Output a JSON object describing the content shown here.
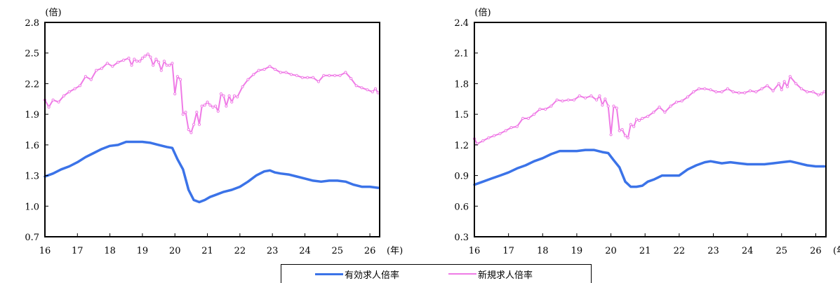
{
  "chart_data": [
    {
      "type": "line",
      "title": "",
      "unit_label": "(倍)",
      "xlabel": "(年)",
      "x_ticks": [
        "16",
        "17",
        "18",
        "19",
        "20",
        "21",
        "22",
        "23",
        "24",
        "25",
        "26"
      ],
      "xlim": [
        2016.0,
        2026.3
      ],
      "ylim": [
        0.7,
        2.8
      ],
      "y_ticks": [
        "0.7",
        "1.0",
        "1.3",
        "1.6",
        "1.9",
        "2.2",
        "2.5",
        "2.8"
      ],
      "grid": false,
      "series": [
        {
          "name": "有効求人倍率",
          "color": "#3b73e8",
          "x": [
            2016.0,
            2016.25,
            2016.5,
            2016.75,
            2017.0,
            2017.25,
            2017.5,
            2017.75,
            2018.0,
            2018.25,
            2018.5,
            2018.75,
            2019.0,
            2019.25,
            2019.5,
            2019.75,
            2019.92,
            2020.08,
            2020.25,
            2020.42,
            2020.58,
            2020.75,
            2020.92,
            2021.08,
            2021.25,
            2021.5,
            2021.75,
            2022.0,
            2022.25,
            2022.5,
            2022.75,
            2022.92,
            2023.08,
            2023.25,
            2023.5,
            2023.75,
            2024.0,
            2024.25,
            2024.5,
            2024.75,
            2025.0,
            2025.25,
            2025.5,
            2025.75,
            2026.0,
            2026.25
          ],
          "values": [
            1.29,
            1.32,
            1.36,
            1.39,
            1.43,
            1.48,
            1.52,
            1.56,
            1.59,
            1.6,
            1.63,
            1.63,
            1.63,
            1.62,
            1.6,
            1.58,
            1.57,
            1.46,
            1.36,
            1.16,
            1.06,
            1.04,
            1.06,
            1.09,
            1.11,
            1.14,
            1.16,
            1.19,
            1.24,
            1.3,
            1.34,
            1.35,
            1.33,
            1.32,
            1.31,
            1.29,
            1.27,
            1.25,
            1.24,
            1.25,
            1.25,
            1.24,
            1.21,
            1.19,
            1.19,
            1.18
          ]
        },
        {
          "name": "新規求人倍率",
          "color": "#ef7be6",
          "x": [
            2016.0,
            2016.12,
            2016.25,
            2016.42,
            2016.58,
            2016.75,
            2016.92,
            2017.08,
            2017.25,
            2017.42,
            2017.58,
            2017.75,
            2017.92,
            2018.08,
            2018.25,
            2018.42,
            2018.58,
            2018.67,
            2018.75,
            2018.83,
            2018.92,
            2019.0,
            2019.08,
            2019.17,
            2019.25,
            2019.33,
            2019.42,
            2019.5,
            2019.58,
            2019.67,
            2019.75,
            2019.83,
            2019.92,
            2020.0,
            2020.08,
            2020.17,
            2020.25,
            2020.33,
            2020.42,
            2020.5,
            2020.58,
            2020.67,
            2020.75,
            2020.83,
            2020.92,
            2021.0,
            2021.08,
            2021.17,
            2021.25,
            2021.33,
            2021.42,
            2021.5,
            2021.58,
            2021.67,
            2021.75,
            2021.83,
            2021.92,
            2022.08,
            2022.25,
            2022.42,
            2022.58,
            2022.75,
            2022.92,
            2023.08,
            2023.25,
            2023.42,
            2023.58,
            2023.75,
            2023.92,
            2024.08,
            2024.25,
            2024.42,
            2024.58,
            2024.75,
            2024.92,
            2025.08,
            2025.25,
            2025.42,
            2025.58,
            2025.75,
            2025.92,
            2026.08,
            2026.17,
            2026.25
          ],
          "values": [
            2.04,
            1.97,
            2.04,
            2.02,
            2.08,
            2.12,
            2.15,
            2.18,
            2.27,
            2.24,
            2.33,
            2.35,
            2.4,
            2.37,
            2.41,
            2.43,
            2.45,
            2.38,
            2.44,
            2.42,
            2.42,
            2.45,
            2.47,
            2.49,
            2.46,
            2.38,
            2.44,
            2.41,
            2.33,
            2.42,
            2.38,
            2.38,
            2.4,
            2.1,
            2.27,
            2.24,
            1.9,
            1.92,
            1.75,
            1.72,
            1.8,
            1.92,
            1.8,
            1.98,
            1.99,
            2.02,
            1.99,
            1.97,
            1.98,
            1.93,
            2.1,
            2.08,
            1.98,
            2.08,
            2.02,
            2.08,
            2.07,
            2.17,
            2.24,
            2.29,
            2.33,
            2.34,
            2.37,
            2.34,
            2.31,
            2.31,
            2.29,
            2.28,
            2.26,
            2.26,
            2.26,
            2.22,
            2.28,
            2.28,
            2.28,
            2.28,
            2.31,
            2.25,
            2.18,
            2.16,
            2.14,
            2.12,
            2.15,
            2.11
          ]
        }
      ]
    },
    {
      "type": "line",
      "title": "",
      "unit_label": "(倍)",
      "xlabel": "(年)",
      "x_ticks": [
        "16",
        "17",
        "18",
        "19",
        "20",
        "21",
        "22",
        "23",
        "24",
        "25",
        "26"
      ],
      "xlim": [
        2016.0,
        2026.3
      ],
      "ylim": [
        0.3,
        2.4
      ],
      "y_ticks": [
        "0.3",
        "0.6",
        "0.9",
        "1.2",
        "1.5",
        "1.8",
        "2.1",
        "2.4"
      ],
      "grid": false,
      "series": [
        {
          "name": "有効求人倍率",
          "color": "#3b73e8",
          "x": [
            2016.0,
            2016.25,
            2016.5,
            2016.75,
            2017.0,
            2017.25,
            2017.5,
            2017.75,
            2018.0,
            2018.25,
            2018.5,
            2018.75,
            2019.0,
            2019.25,
            2019.5,
            2019.75,
            2019.92,
            2020.08,
            2020.25,
            2020.42,
            2020.58,
            2020.75,
            2020.92,
            2021.08,
            2021.25,
            2021.5,
            2021.75,
            2022.0,
            2022.25,
            2022.5,
            2022.75,
            2022.92,
            2023.08,
            2023.25,
            2023.5,
            2023.75,
            2024.0,
            2024.25,
            2024.5,
            2024.75,
            2025.0,
            2025.25,
            2025.5,
            2025.75,
            2026.0,
            2026.25
          ],
          "values": [
            0.81,
            0.84,
            0.87,
            0.9,
            0.93,
            0.97,
            1.0,
            1.04,
            1.07,
            1.11,
            1.14,
            1.14,
            1.14,
            1.15,
            1.15,
            1.13,
            1.12,
            1.05,
            0.98,
            0.84,
            0.79,
            0.79,
            0.8,
            0.84,
            0.86,
            0.9,
            0.9,
            0.9,
            0.96,
            1.0,
            1.03,
            1.04,
            1.03,
            1.02,
            1.03,
            1.02,
            1.01,
            1.01,
            1.01,
            1.02,
            1.03,
            1.04,
            1.02,
            1.0,
            0.99,
            0.99
          ]
        },
        {
          "name": "新規求人倍率",
          "color": "#ef7be6",
          "x": [
            2016.0,
            2016.08,
            2016.25,
            2016.42,
            2016.58,
            2016.75,
            2016.92,
            2017.08,
            2017.25,
            2017.42,
            2017.58,
            2017.75,
            2017.92,
            2018.08,
            2018.25,
            2018.42,
            2018.58,
            2018.75,
            2018.92,
            2019.08,
            2019.25,
            2019.42,
            2019.58,
            2019.67,
            2019.75,
            2019.83,
            2019.92,
            2020.0,
            2020.08,
            2020.17,
            2020.25,
            2020.33,
            2020.42,
            2020.5,
            2020.58,
            2020.67,
            2020.75,
            2020.83,
            2020.92,
            2021.08,
            2021.25,
            2021.42,
            2021.58,
            2021.75,
            2021.92,
            2022.08,
            2022.25,
            2022.42,
            2022.58,
            2022.75,
            2022.92,
            2023.08,
            2023.25,
            2023.42,
            2023.58,
            2023.75,
            2023.92,
            2024.08,
            2024.25,
            2024.42,
            2024.58,
            2024.75,
            2024.92,
            2025.0,
            2025.08,
            2025.17,
            2025.25,
            2025.42,
            2025.58,
            2025.75,
            2025.92,
            2026.08,
            2026.17,
            2026.25
          ],
          "values": [
            1.26,
            1.21,
            1.24,
            1.27,
            1.29,
            1.31,
            1.34,
            1.37,
            1.38,
            1.46,
            1.46,
            1.5,
            1.55,
            1.55,
            1.58,
            1.64,
            1.63,
            1.64,
            1.64,
            1.68,
            1.66,
            1.68,
            1.64,
            1.68,
            1.59,
            1.65,
            1.58,
            1.3,
            1.58,
            1.56,
            1.34,
            1.35,
            1.29,
            1.27,
            1.4,
            1.38,
            1.45,
            1.44,
            1.46,
            1.48,
            1.52,
            1.57,
            1.52,
            1.58,
            1.62,
            1.63,
            1.67,
            1.72,
            1.75,
            1.75,
            1.74,
            1.72,
            1.72,
            1.75,
            1.72,
            1.71,
            1.71,
            1.73,
            1.72,
            1.75,
            1.78,
            1.73,
            1.8,
            1.74,
            1.82,
            1.77,
            1.87,
            1.8,
            1.75,
            1.72,
            1.72,
            1.69,
            1.7,
            1.72
          ]
        }
      ]
    }
  ],
  "legend": {
    "items": [
      {
        "label": "有効求人倍率",
        "color": "#3b73e8"
      },
      {
        "label": "新規求人倍率",
        "color": "#ef7be6"
      }
    ]
  }
}
